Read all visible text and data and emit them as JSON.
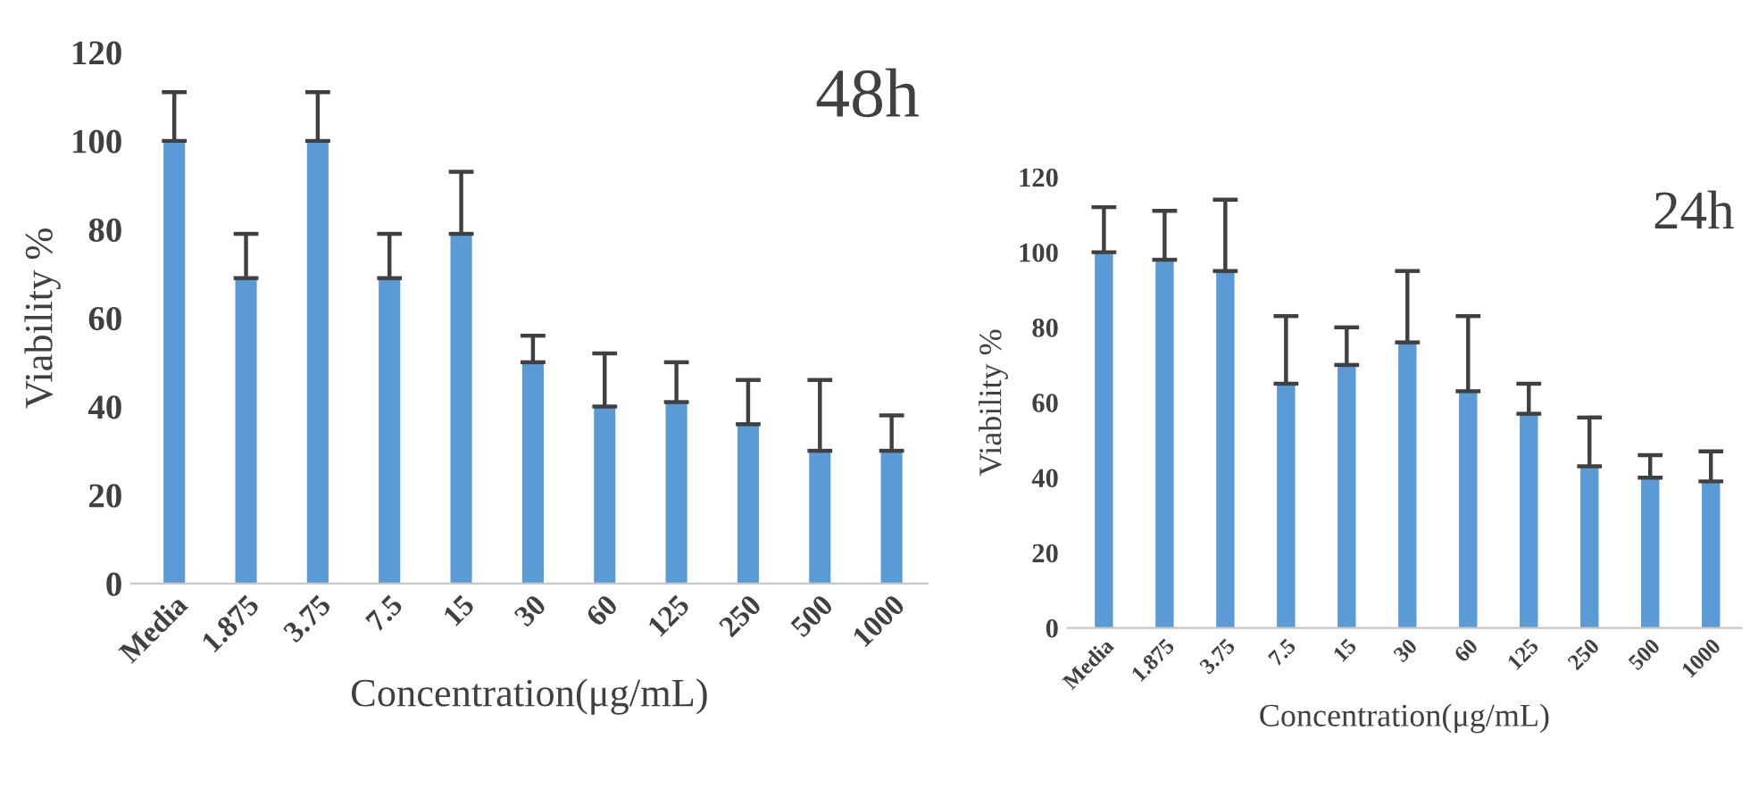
{
  "chart_data": [
    {
      "type": "bar",
      "xlabel": "Concentration(μg/mL)",
      "ylabel": "Viability %",
      "annotations": [
        "48h"
      ],
      "categories": [
        "Media",
        "1.875",
        "3.75",
        "7.5",
        "15",
        "30",
        "60",
        "125",
        "250",
        "500",
        "1000"
      ],
      "values": [
        100,
        69,
        100,
        69,
        79,
        50,
        40,
        41,
        36,
        30,
        30
      ],
      "color": "#5b9bd5",
      "errors": [
        [
          100,
          111
        ],
        [
          69,
          79
        ],
        [
          100,
          111
        ],
        [
          69,
          79
        ],
        [
          79,
          93
        ],
        [
          50,
          56
        ],
        [
          40,
          52
        ],
        [
          41,
          50
        ],
        [
          36,
          46
        ],
        [
          30,
          46
        ],
        [
          30,
          38
        ]
      ],
      "ylim": [
        0,
        120
      ],
      "yticks": [
        0,
        20,
        40,
        60,
        80,
        100,
        120
      ],
      "grid": false,
      "legend": false
    },
    {
      "type": "bar",
      "xlabel": "Concentration(μg/mL)",
      "ylabel": "Viability %",
      "annotations": [
        "24h"
      ],
      "categories": [
        "Media",
        "1.875",
        "3.75",
        "7.5",
        "15",
        "30",
        "60",
        "125",
        "250",
        "500",
        "1000"
      ],
      "values": [
        100,
        98,
        95,
        65,
        70,
        76,
        63,
        57,
        43,
        40,
        39
      ],
      "color": "#5b9bd5",
      "errors": [
        [
          100,
          112
        ],
        [
          98,
          111
        ],
        [
          95,
          114
        ],
        [
          65,
          83
        ],
        [
          70,
          80
        ],
        [
          76,
          95
        ],
        [
          63,
          83
        ],
        [
          57,
          65
        ],
        [
          43,
          56
        ],
        [
          40,
          46
        ],
        [
          39,
          47
        ]
      ],
      "ylim": [
        0,
        120
      ],
      "yticks": [
        0,
        20,
        40,
        60,
        80,
        100,
        120
      ],
      "grid": false,
      "legend": false
    }
  ]
}
